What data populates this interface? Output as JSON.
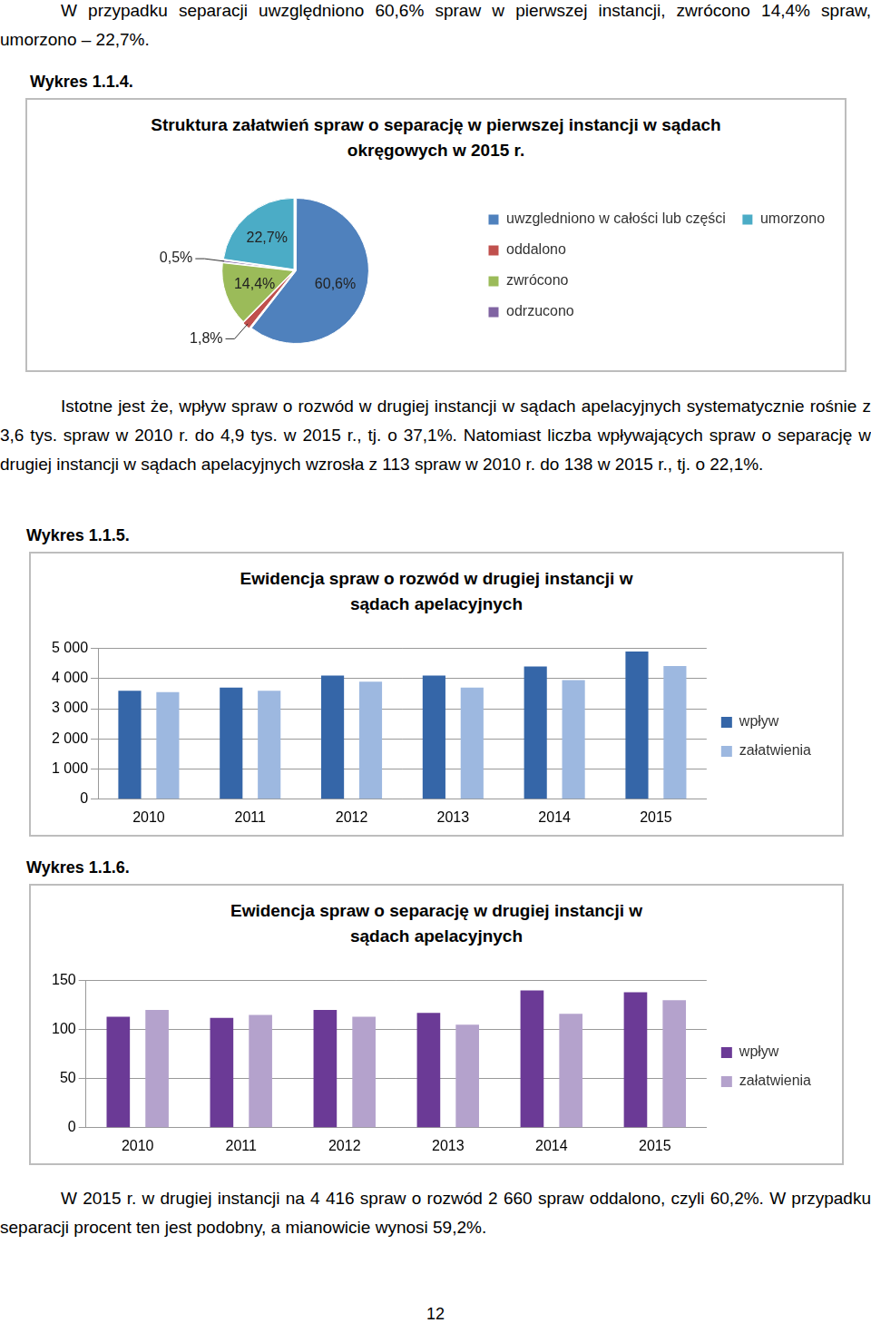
{
  "paragraphs": [
    "W przypadku separacji uwzględniono 60,6% spraw w pierwszej instancji, zwrócono 14,4% spraw, umorzono – 22,7%.",
    "Istotne jest że, wpływ spraw o rozwód w drugiej instancji w sądach apelacyjnych systematycznie rośnie z 3,6 tys. spraw w 2010 r. do 4,9 tys. w 2015 r., tj. o 37,1%. Natomiast liczba wpływających spraw o separację w drugiej instancji w sądach apelacyjnych wzrosła z 113 spraw w 2010 r. do 138 w 2015 r., tj. o 22,1%.",
    "W 2015 r. w drugiej instancji na 4 416 spraw o rozwód 2 660 spraw oddalono, czyli 60,2%. W przypadku separacji procent ten jest podobny, a mianowicie wynosi 59,2%."
  ],
  "figure_labels": [
    "Wykres 1.1.4.",
    "Wykres 1.1.5.",
    "Wykres 1.1.6."
  ],
  "page_number": "12",
  "chart_data": [
    {
      "type": "pie",
      "title": "Struktura załatwień spraw o separację w pierwszej instancji w sądach okręgowych w 2015 r.",
      "categories": [
        "uwzgledniono w całości lub części",
        "oddalono",
        "zwrócono",
        "odrzucono",
        "umorzono"
      ],
      "values": [
        60.6,
        1.8,
        14.4,
        0.5,
        22.7
      ],
      "value_labels": [
        "60,6%",
        "1,8%",
        "14,4%",
        "0,5%",
        "22,7%"
      ],
      "colors": [
        "#4f81bd",
        "#c0504d",
        "#9bbb59",
        "#8064a2",
        "#4bacc6"
      ],
      "data_labels": true,
      "legend": "right"
    },
    {
      "type": "bar",
      "title": "Ewidencja spraw o rozwód w drugiej instancji w sądach apelacyjnych",
      "categories": [
        "2010",
        "2011",
        "2012",
        "2013",
        "2014",
        "2015"
      ],
      "series": [
        {
          "name": "wpływ",
          "color": "#3566a8",
          "values": [
            3600,
            3700,
            4100,
            4100,
            4400,
            4900
          ]
        },
        {
          "name": "załatwienia",
          "color": "#9db8e0",
          "values": [
            3550,
            3600,
            3900,
            3700,
            3950,
            4416
          ]
        }
      ],
      "ylim": [
        0,
        5000
      ],
      "yticks": [
        0,
        {
          "value": 1000,
          "label": "1 000"
        },
        {
          "value": 2000,
          "label": "2 000"
        },
        {
          "value": 3000,
          "label": "3 000"
        },
        {
          "value": 4000,
          "label": "4 000"
        },
        {
          "value": 5000,
          "label": "5 000"
        }
      ],
      "grid": true,
      "legend": "right"
    },
    {
      "type": "bar",
      "title": "Ewidencja spraw o separację w drugiej instancji w sądach apelacyjnych",
      "categories": [
        "2010",
        "2011",
        "2012",
        "2013",
        "2014",
        "2015"
      ],
      "series": [
        {
          "name": "wpływ",
          "color": "#6b3a96",
          "values": [
            113,
            112,
            120,
            117,
            140,
            138
          ]
        },
        {
          "name": "załatwienia",
          "color": "#b4a2cc",
          "values": [
            120,
            115,
            113,
            105,
            116,
            130
          ]
        }
      ],
      "ylim": [
        0,
        150
      ],
      "yticks": [
        0,
        50,
        100,
        150
      ],
      "grid": true,
      "legend": "right"
    }
  ]
}
